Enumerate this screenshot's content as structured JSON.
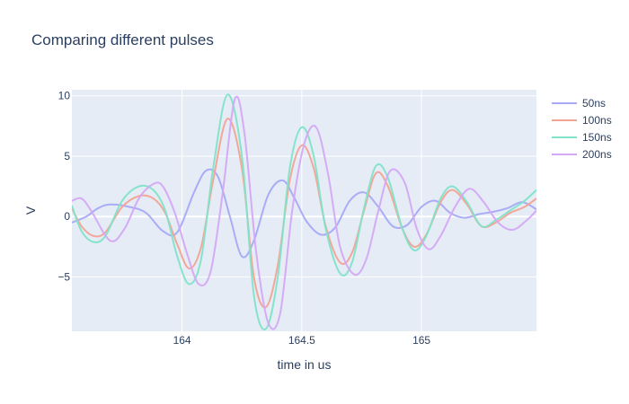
{
  "chart_data": {
    "type": "line",
    "title": "Comparing different pulses",
    "xlabel": "time in us",
    "ylabel": "V",
    "xlim": [
      163.54,
      165.48
    ],
    "ylim": [
      -9.5,
      10.5
    ],
    "x_ticks": [
      164,
      164.5,
      165
    ],
    "x_tick_labels": [
      "164",
      "164.5",
      "165"
    ],
    "y_ticks": [
      -5,
      0,
      5,
      10
    ],
    "y_tick_labels": [
      "−5",
      "0",
      "5",
      "10"
    ],
    "grid": true,
    "legend_position": "top-right",
    "series": [
      {
        "name": "50ns",
        "color": "#a7a9f5",
        "x": [
          163.54,
          163.6,
          163.65,
          163.7,
          163.78,
          163.85,
          163.92,
          163.98,
          164.05,
          164.1,
          164.15,
          164.2,
          164.25,
          164.3,
          164.36,
          164.42,
          164.47,
          164.52,
          164.58,
          164.64,
          164.7,
          164.76,
          164.82,
          164.88,
          164.94,
          165.0,
          165.06,
          165.12,
          165.18,
          165.24,
          165.3,
          165.36,
          165.42,
          165.48
        ],
        "values": [
          -0.5,
          0.0,
          0.7,
          1.0,
          0.8,
          0.3,
          -1.2,
          -1.3,
          2.0,
          3.8,
          3.3,
          0.0,
          -3.3,
          -2.0,
          1.8,
          3.0,
          1.5,
          -0.4,
          -1.5,
          -0.9,
          1.3,
          2.0,
          0.8,
          -0.8,
          -0.7,
          0.8,
          1.3,
          0.3,
          -0.1,
          0.2,
          0.4,
          0.7,
          1.2,
          0.6
        ]
      },
      {
        "name": "100ns",
        "color": "#f2a394",
        "x": [
          163.54,
          163.58,
          163.63,
          163.68,
          163.75,
          163.82,
          163.88,
          163.93,
          163.98,
          164.03,
          164.08,
          164.13,
          164.19,
          164.25,
          164.3,
          164.35,
          164.4,
          164.45,
          164.5,
          164.55,
          164.6,
          164.66,
          164.71,
          164.76,
          164.81,
          164.86,
          164.92,
          164.97,
          165.02,
          165.08,
          165.13,
          165.19,
          165.25,
          165.31,
          165.37,
          165.43,
          165.48
        ],
        "values": [
          0.7,
          -0.8,
          -1.6,
          -1.3,
          0.8,
          1.7,
          1.5,
          0.3,
          -2.3,
          -4.3,
          -2.5,
          3.0,
          8.1,
          4.0,
          -5.0,
          -7.5,
          -4.0,
          3.0,
          5.9,
          4.0,
          -0.8,
          -3.8,
          -3.0,
          0.5,
          3.6,
          2.5,
          -1.0,
          -2.5,
          -1.5,
          1.2,
          2.2,
          1.0,
          -0.8,
          -0.5,
          0.3,
          0.8,
          1.5
        ]
      },
      {
        "name": "150ns",
        "color": "#81e3c8",
        "x": [
          163.54,
          163.58,
          163.63,
          163.68,
          163.75,
          163.82,
          163.88,
          163.93,
          163.98,
          164.03,
          164.08,
          164.13,
          164.19,
          164.25,
          164.3,
          164.35,
          164.4,
          164.45,
          164.5,
          164.55,
          164.6,
          164.66,
          164.71,
          164.76,
          164.81,
          164.86,
          164.92,
          164.97,
          165.02,
          165.08,
          165.13,
          165.19,
          165.25,
          165.31,
          165.37,
          165.43,
          165.48
        ],
        "values": [
          0.9,
          -1.2,
          -2.1,
          -1.6,
          1.3,
          2.5,
          2.2,
          0.5,
          -3.3,
          -5.6,
          -3.5,
          4.0,
          10.1,
          5.0,
          -6.5,
          -9.3,
          -5.0,
          4.0,
          7.4,
          5.0,
          -1.0,
          -4.7,
          -3.8,
          0.7,
          4.2,
          3.2,
          -1.0,
          -2.8,
          -1.6,
          1.5,
          2.5,
          1.2,
          -0.8,
          -0.3,
          0.5,
          1.3,
          2.2
        ]
      },
      {
        "name": "200ns",
        "color": "#d4a8f5",
        "x": [
          163.54,
          163.58,
          163.62,
          163.7,
          163.76,
          163.82,
          163.88,
          163.92,
          163.97,
          164.02,
          164.07,
          164.12,
          164.17,
          164.22,
          164.26,
          164.31,
          164.36,
          164.41,
          164.46,
          164.51,
          164.56,
          164.61,
          164.66,
          164.72,
          164.77,
          164.82,
          164.87,
          164.93,
          164.98,
          165.03,
          165.08,
          165.14,
          165.2,
          165.26,
          165.32,
          165.38,
          165.44,
          165.48
        ],
        "values": [
          1.3,
          1.5,
          0.5,
          -2.0,
          -1.0,
          1.5,
          2.7,
          2.5,
          0.3,
          -3.0,
          -5.6,
          -4.5,
          2.0,
          9.7,
          7.0,
          -3.0,
          -8.8,
          -8.0,
          0.5,
          6.0,
          7.4,
          3.5,
          -2.5,
          -4.8,
          -3.5,
          0.5,
          3.8,
          2.8,
          -1.0,
          -2.7,
          -1.6,
          0.8,
          2.3,
          1.2,
          -0.5,
          -1.1,
          -0.3,
          0.5
        ]
      }
    ]
  }
}
